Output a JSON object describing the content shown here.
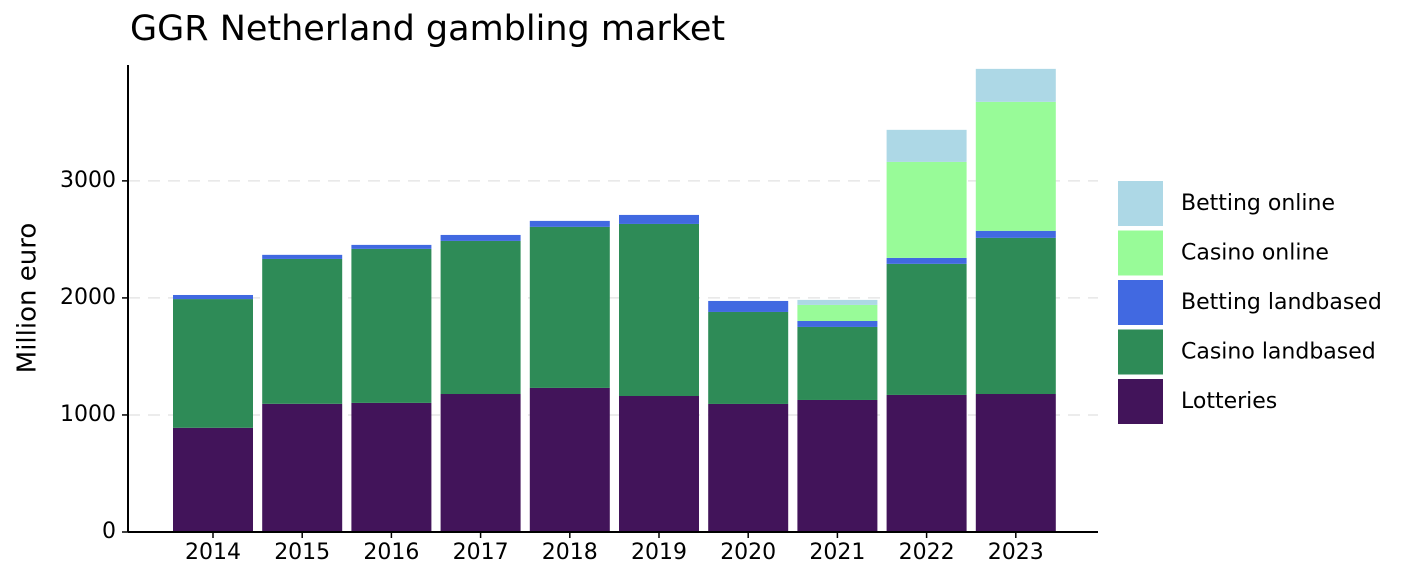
{
  "chart_data": {
    "type": "stacked_bar",
    "title": "GGR Netherland gambling market",
    "ylabel": "Million euro",
    "categories": [
      "2014",
      "2015",
      "2016",
      "2017",
      "2018",
      "2019",
      "2020",
      "2021",
      "2022",
      "2023"
    ],
    "series": [
      {
        "name": "Lotteries",
        "color": "#42145a",
        "values": [
          890,
          1095,
          1103,
          1179,
          1231,
          1162,
          1094,
          1128,
          1171,
          1179
        ]
      },
      {
        "name": "Casino landbased",
        "color": "#2e8b57",
        "values": [
          1100,
          1238,
          1316,
          1308,
          1376,
          1470,
          786,
          624,
          1120,
          1334
        ]
      },
      {
        "name": "Betting landbased",
        "color": "#4169e1",
        "values": [
          35,
          35,
          34,
          51,
          51,
          77,
          94,
          51,
          51,
          60
        ]
      },
      {
        "name": "Casino online",
        "color": "#98fb98",
        "values": [
          0,
          0,
          0,
          0,
          0,
          0,
          0,
          137,
          820,
          1102
        ]
      },
      {
        "name": "Betting online",
        "color": "#add8e6",
        "values": [
          0,
          0,
          0,
          0,
          0,
          0,
          0,
          43,
          274,
          282
        ]
      }
    ],
    "ylim": [
      0,
      3990
    ],
    "yticks": [
      0,
      1000,
      2000,
      3000
    ],
    "grid": true,
    "legend": "right"
  }
}
